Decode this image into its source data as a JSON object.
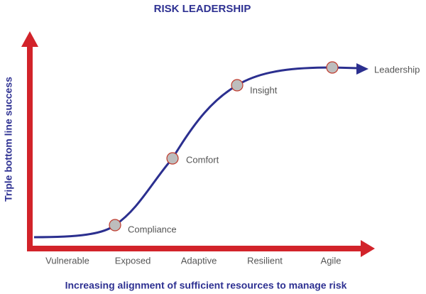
{
  "title": "RISK LEADERSHIP",
  "y_axis_label": "Triple bottom line success",
  "x_axis_label": "Increasing alignment of sufficient resources to manage risk",
  "stages": [
    "Vulnerable",
    "Exposed",
    "Adaptive",
    "Resilient",
    "Agile"
  ],
  "points": [
    {
      "label": "Compliance"
    },
    {
      "label": "Comfort"
    },
    {
      "label": "Insight"
    },
    {
      "label": "Leadership"
    }
  ]
}
